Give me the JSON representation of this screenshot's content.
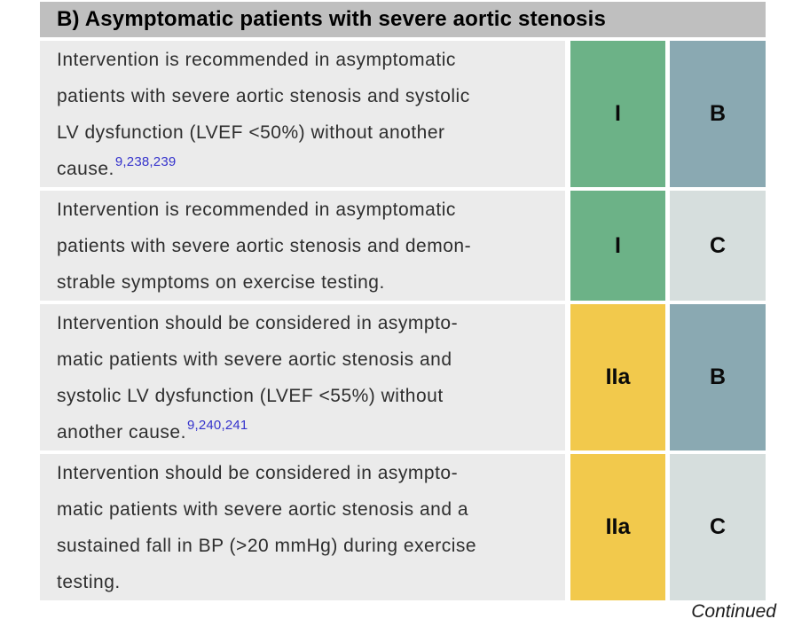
{
  "page": {
    "section_header": "B) Asymptomatic patients with severe aortic stenosis",
    "continued_label": "Continued"
  },
  "colors": {
    "header_bg": "#bfbfbf",
    "row_bg": "#ebebeb",
    "class_I": "#6cb287",
    "class_IIa": "#f2c94c",
    "level_B": "#8aa9b2",
    "level_C": "#d6dedd",
    "reference_link": "#3533cc",
    "body_text": "#2e2e2e"
  },
  "table": {
    "rows": [
      {
        "lines": [
          "Intervention is recommended in asymptomatic",
          "patients with severe aortic stenosis and systolic",
          "LV dysfunction (LVEF <50%) without another",
          "cause."
        ],
        "reference": "9,238,239",
        "class": "I",
        "level": "B"
      },
      {
        "lines": [
          "Intervention is recommended in asymptomatic",
          "patients with severe aortic stenosis and demon-",
          "strable symptoms on exercise testing."
        ],
        "reference": "",
        "class": "I",
        "level": "C"
      },
      {
        "lines": [
          "Intervention should be considered in asympto-",
          "matic patients with severe aortic stenosis and",
          "systolic LV dysfunction (LVEF <55%) without",
          "another cause."
        ],
        "reference": "9,240,241",
        "class": "IIa",
        "level": "B"
      },
      {
        "lines": [
          "Intervention should be considered in asympto-",
          "matic patients with severe aortic stenosis and a",
          "sustained fall in BP (>20 mmHg) during exercise",
          "testing."
        ],
        "reference": "",
        "class": "IIa",
        "level": "C"
      }
    ]
  }
}
